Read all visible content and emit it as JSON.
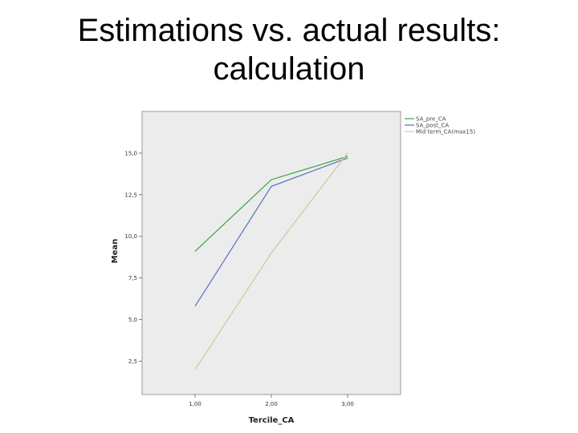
{
  "slide": {
    "title_line1": "Estimations vs. actual results:",
    "title_line2": "calculation"
  },
  "chart_data": {
    "type": "line",
    "title": "",
    "xlabel": "Tercile_CA",
    "ylabel": "Mean",
    "categories": [
      "1,00",
      "2,00",
      "3,00"
    ],
    "yticks": [
      "2,5",
      "5,0",
      "7,5",
      "10,0",
      "12,5",
      "15,0"
    ],
    "ylim": [
      0.5,
      17.5
    ],
    "grid": false,
    "legend_position": "top-right-outside",
    "series": [
      {
        "name": "SA_pre_CA",
        "color": "#3aa33a",
        "values": [
          9.1,
          13.4,
          14.8
        ]
      },
      {
        "name": "SA_post_CA",
        "color": "#5b6fc7",
        "values": [
          5.8,
          13.0,
          14.7
        ]
      },
      {
        "name": "Mid term_CA(max15)",
        "color": "#cfc99a",
        "values": [
          2.0,
          9.0,
          15.0
        ]
      }
    ]
  }
}
